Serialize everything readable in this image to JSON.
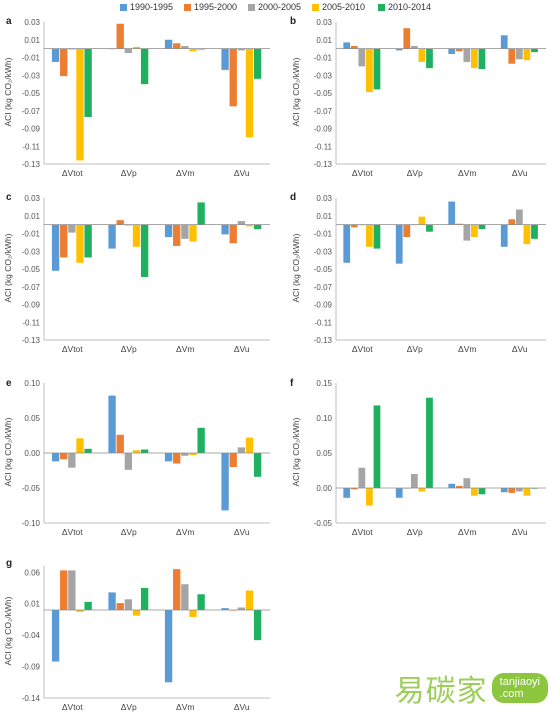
{
  "legend": [
    {
      "label": "1990-1995",
      "color": "#5b9bd5"
    },
    {
      "label": "1995-2000",
      "color": "#ed7d31"
    },
    {
      "label": "2000-2005",
      "color": "#a5a5a5"
    },
    {
      "label": "2005-2010",
      "color": "#ffc000"
    },
    {
      "label": "2010-2014",
      "color": "#1fb060"
    }
  ],
  "watermark": {
    "text": "易碳家",
    "badge": "tanjiaoyi\n.com"
  },
  "chart_data": [
    {
      "panel": "a",
      "type": "bar",
      "ylabel": "ACI (kg CO₂/kWh)",
      "categories": [
        "ΔVtot",
        "ΔVp",
        "ΔVm",
        "ΔVu"
      ],
      "ylim": [
        -0.13,
        0.03
      ],
      "yticks": [
        "0.03",
        "0.01",
        "-0.01",
        "-0.03",
        "-0.05",
        "-0.07",
        "-0.09",
        "-0.11",
        "-0.13"
      ],
      "ytick_values": [
        0.03,
        0.01,
        -0.01,
        -0.03,
        -0.05,
        -0.07,
        -0.09,
        -0.11,
        -0.13
      ],
      "series": [
        {
          "name": "1990-1995",
          "values": [
            -0.015,
            0.0,
            0.01,
            -0.024
          ]
        },
        {
          "name": "1995-2000",
          "values": [
            -0.031,
            0.028,
            0.006,
            -0.065
          ]
        },
        {
          "name": "2000-2005",
          "values": [
            -0.001,
            -0.005,
            0.003,
            -0.002
          ]
        },
        {
          "name": "2005-2010",
          "values": [
            -0.126,
            0.002,
            -0.003,
            -0.1
          ]
        },
        {
          "name": "2010-2014",
          "values": [
            -0.077,
            -0.04,
            -0.001,
            -0.034
          ]
        }
      ]
    },
    {
      "panel": "b",
      "type": "bar",
      "ylabel": "ACI (kg CO₂/kWh)",
      "categories": [
        "ΔVtot",
        "ΔVp",
        "ΔVm",
        "ΔVu"
      ],
      "ylim": [
        -0.13,
        0.03
      ],
      "yticks": [
        "0.03",
        "0.01",
        "-0.01",
        "-0.03",
        "-0.05",
        "-0.07",
        "-0.09",
        "-0.11",
        "-0.13"
      ],
      "ytick_values": [
        0.03,
        0.01,
        -0.01,
        -0.03,
        -0.05,
        -0.07,
        -0.09,
        -0.11,
        -0.13
      ],
      "series": [
        {
          "name": "1990-1995",
          "values": [
            0.007,
            -0.002,
            -0.006,
            0.015
          ]
        },
        {
          "name": "1995-2000",
          "values": [
            0.003,
            0.023,
            -0.003,
            -0.017
          ]
        },
        {
          "name": "2000-2005",
          "values": [
            -0.02,
            0.003,
            -0.015,
            -0.012
          ]
        },
        {
          "name": "2005-2010",
          "values": [
            -0.049,
            -0.015,
            -0.022,
            -0.013
          ]
        },
        {
          "name": "2010-2014",
          "values": [
            -0.046,
            -0.022,
            -0.023,
            -0.004
          ]
        }
      ]
    },
    {
      "panel": "c",
      "type": "bar",
      "ylabel": "ACI (kg CO₂/kWh)",
      "categories": [
        "ΔVtot",
        "ΔVp",
        "ΔVm",
        "ΔVu"
      ],
      "ylim": [
        -0.13,
        0.03
      ],
      "yticks": [
        "0.03",
        "0.01",
        "-0.01",
        "-0.03",
        "-0.05",
        "-0.07",
        "-0.09",
        "-0.11",
        "-0.13"
      ],
      "ytick_values": [
        0.03,
        0.01,
        -0.01,
        -0.03,
        -0.05,
        -0.07,
        -0.09,
        -0.11,
        -0.13
      ],
      "series": [
        {
          "name": "1990-1995",
          "values": [
            -0.052,
            -0.027,
            -0.014,
            -0.011
          ]
        },
        {
          "name": "1995-2000",
          "values": [
            -0.037,
            0.005,
            -0.024,
            -0.021
          ]
        },
        {
          "name": "2000-2005",
          "values": [
            -0.009,
            -0.001,
            -0.016,
            0.004
          ]
        },
        {
          "name": "2005-2010",
          "values": [
            -0.043,
            -0.025,
            -0.019,
            -0.002
          ]
        },
        {
          "name": "2010-2014",
          "values": [
            -0.037,
            -0.059,
            0.025,
            -0.005
          ]
        }
      ]
    },
    {
      "panel": "d",
      "type": "bar",
      "ylabel": "ACI (kg CO₂/kWh)",
      "categories": [
        "ΔVtot",
        "ΔVp",
        "ΔVm",
        "ΔVu"
      ],
      "ylim": [
        -0.13,
        0.03
      ],
      "yticks": [
        "0.03",
        "0.01",
        "-0.01",
        "-0.03",
        "-0.05",
        "-0.07",
        "-0.09",
        "-0.11",
        "-0.13"
      ],
      "ytick_values": [
        0.03,
        0.01,
        -0.01,
        -0.03,
        -0.05,
        -0.07,
        -0.09,
        -0.11,
        -0.13
      ],
      "series": [
        {
          "name": "1990-1995",
          "values": [
            -0.043,
            -0.044,
            0.026,
            -0.025
          ]
        },
        {
          "name": "1995-2000",
          "values": [
            -0.003,
            -0.014,
            0.001,
            0.006
          ]
        },
        {
          "name": "2000-2005",
          "values": [
            0.0,
            0.0,
            -0.018,
            0.017
          ]
        },
        {
          "name": "2005-2010",
          "values": [
            -0.025,
            0.009,
            -0.014,
            -0.022
          ]
        },
        {
          "name": "2010-2014",
          "values": [
            -0.027,
            -0.008,
            -0.005,
            -0.016
          ]
        }
      ]
    },
    {
      "panel": "e",
      "type": "bar",
      "ylabel": "ACI (kg CO₂/kWh)",
      "categories": [
        "ΔVtot",
        "ΔVp",
        "ΔVm",
        "ΔVu"
      ],
      "ylim": [
        -0.1,
        0.1
      ],
      "yticks": [
        "0.10",
        "0.05",
        "0.00",
        "-0.05",
        "-0.10"
      ],
      "ytick_values": [
        0.1,
        0.05,
        0.0,
        -0.05,
        -0.1
      ],
      "series": [
        {
          "name": "1990-1995",
          "values": [
            -0.012,
            0.082,
            -0.012,
            -0.082
          ]
        },
        {
          "name": "1995-2000",
          "values": [
            -0.009,
            0.026,
            -0.015,
            -0.02
          ]
        },
        {
          "name": "2000-2005",
          "values": [
            -0.021,
            -0.024,
            -0.004,
            0.008
          ]
        },
        {
          "name": "2005-2010",
          "values": [
            0.021,
            0.004,
            -0.003,
            0.022
          ]
        },
        {
          "name": "2010-2014",
          "values": [
            0.006,
            0.005,
            0.036,
            -0.034
          ]
        }
      ]
    },
    {
      "panel": "f",
      "type": "bar",
      "ylabel": "ACI (kg CO₂/kWh)",
      "categories": [
        "ΔVtot",
        "ΔVp",
        "ΔVm",
        "ΔVu"
      ],
      "ylim": [
        -0.05,
        0.15
      ],
      "yticks": [
        "0.15",
        "0.10",
        "0.05",
        "0.00",
        "-0.05"
      ],
      "ytick_values": [
        0.15,
        0.1,
        0.05,
        0.0,
        -0.05
      ],
      "series": [
        {
          "name": "1990-1995",
          "values": [
            -0.014,
            -0.014,
            0.006,
            -0.006
          ]
        },
        {
          "name": "1995-2000",
          "values": [
            -0.002,
            0.0,
            0.003,
            -0.007
          ]
        },
        {
          "name": "2000-2005",
          "values": [
            0.029,
            0.02,
            0.014,
            -0.005
          ]
        },
        {
          "name": "2005-2010",
          "values": [
            -0.025,
            -0.005,
            -0.011,
            -0.011
          ]
        },
        {
          "name": "2010-2014",
          "values": [
            0.118,
            0.129,
            -0.009,
            -0.001
          ]
        }
      ]
    },
    {
      "panel": "g",
      "type": "bar",
      "ylabel": "ACI (kg CO₂/kWh)",
      "categories": [
        "ΔVtot",
        "ΔVp",
        "ΔVm",
        "ΔVu"
      ],
      "ylim": [
        -0.14,
        0.07
      ],
      "yticks": [
        "0.06",
        "0.01",
        "-0.04",
        "-0.09",
        "-0.14"
      ],
      "ytick_values": [
        0.06,
        0.01,
        -0.04,
        -0.09,
        -0.14
      ],
      "series": [
        {
          "name": "1990-1995",
          "values": [
            -0.082,
            0.028,
            -0.115,
            0.003
          ]
        },
        {
          "name": "1995-2000",
          "values": [
            0.063,
            0.011,
            0.065,
            -0.001
          ]
        },
        {
          "name": "2000-2005",
          "values": [
            0.063,
            0.017,
            0.041,
            0.004
          ]
        },
        {
          "name": "2005-2010",
          "values": [
            -0.003,
            -0.009,
            -0.011,
            0.031
          ]
        },
        {
          "name": "2010-2014",
          "values": [
            0.013,
            0.035,
            0.025,
            -0.048
          ]
        }
      ]
    }
  ]
}
